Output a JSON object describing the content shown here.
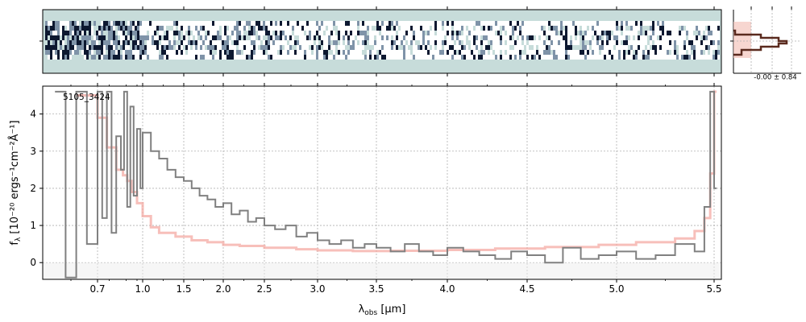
{
  "chart_data": {
    "type": "line",
    "object_label": "5105_3424",
    "xlabel_prefix": "λ",
    "xlabel_sub": "obs",
    "xlabel_suffix": " [μm]",
    "ylabel_main": "f",
    "ylabel_sub": "λ",
    "ylabel_units": " [10⁻²⁰ ergs⁻¹cm⁻²Å⁻¹]",
    "xlim": [
      0.6,
      5.52
    ],
    "ylim": [
      -0.45,
      4.75
    ],
    "x_scale": "nonlinear-sqrt-like",
    "grid": true,
    "x_ticks": [
      {
        "label": "0.7",
        "value": 0.7
      },
      {
        "label": "1.0",
        "value": 1.0
      },
      {
        "label": "1.5",
        "value": 1.5
      },
      {
        "label": "2.0",
        "value": 2.0
      },
      {
        "label": "2.5",
        "value": 2.5
      },
      {
        "label": "3.0",
        "value": 3.0
      },
      {
        "label": "3.5",
        "value": 3.5
      },
      {
        "label": "4.0",
        "value": 4.0
      },
      {
        "label": "4.5",
        "value": 4.5
      },
      {
        "label": "5.0",
        "value": 5.0
      },
      {
        "label": "5.5",
        "value": 5.5
      }
    ],
    "y_ticks": [
      {
        "label": "0",
        "value": 0
      },
      {
        "label": "1",
        "value": 1
      },
      {
        "label": "2",
        "value": 2
      },
      {
        "label": "3",
        "value": 3
      },
      {
        "label": "4",
        "value": 4
      }
    ],
    "series": [
      {
        "role": "flux",
        "color": "#808080",
        "x": [
          0.62,
          0.64,
          0.66,
          0.68,
          0.7,
          0.72,
          0.74,
          0.76,
          0.78,
          0.8,
          0.83,
          0.86,
          0.89,
          0.92,
          0.95,
          0.98,
          1.0,
          1.1,
          1.2,
          1.3,
          1.4,
          1.5,
          1.6,
          1.7,
          1.8,
          1.9,
          2.0,
          2.1,
          2.2,
          2.3,
          2.4,
          2.5,
          2.6,
          2.7,
          2.8,
          2.9,
          3.0,
          3.1,
          3.2,
          3.3,
          3.4,
          3.5,
          3.6,
          3.7,
          3.8,
          3.9,
          4.0,
          4.1,
          4.2,
          4.3,
          4.4,
          4.5,
          4.6,
          4.7,
          4.8,
          4.9,
          5.0,
          5.1,
          5.2,
          5.3,
          5.4,
          5.45,
          5.48,
          5.5
        ],
        "y": [
          4.6,
          -0.4,
          4.6,
          0.5,
          4.6,
          1.2,
          4.6,
          0.8,
          3.4,
          2.5,
          4.6,
          1.5,
          4.2,
          1.8,
          3.6,
          2.0,
          3.5,
          3.0,
          2.8,
          2.5,
          2.3,
          2.2,
          2.0,
          1.8,
          1.7,
          1.5,
          1.6,
          1.3,
          1.4,
          1.1,
          1.2,
          1.0,
          0.9,
          1.0,
          0.7,
          0.8,
          0.6,
          0.5,
          0.6,
          0.4,
          0.5,
          0.4,
          0.3,
          0.5,
          0.3,
          0.2,
          0.4,
          0.3,
          0.2,
          0.1,
          0.3,
          0.2,
          0.0,
          0.4,
          0.1,
          0.2,
          0.3,
          0.1,
          0.2,
          0.5,
          0.3,
          1.5,
          4.6,
          2.0
        ]
      },
      {
        "role": "model",
        "color": "#f4a49c",
        "x": [
          0.66,
          0.7,
          0.74,
          0.78,
          0.82,
          0.86,
          0.9,
          0.95,
          1.0,
          1.1,
          1.2,
          1.4,
          1.6,
          1.8,
          2.0,
          2.2,
          2.5,
          2.8,
          3.0,
          3.3,
          3.6,
          4.0,
          4.3,
          4.6,
          4.9,
          5.1,
          5.3,
          5.4,
          5.45,
          5.48,
          5.5
        ],
        "y": [
          4.5,
          3.9,
          3.1,
          2.5,
          2.35,
          2.2,
          1.9,
          1.6,
          1.25,
          0.95,
          0.8,
          0.7,
          0.6,
          0.55,
          0.48,
          0.45,
          0.4,
          0.36,
          0.33,
          0.31,
          0.32,
          0.34,
          0.38,
          0.42,
          0.48,
          0.55,
          0.65,
          0.85,
          1.2,
          2.4,
          4.6
        ]
      }
    ],
    "residual_panel": {
      "label": "-0.00 ± 0.84",
      "histogram_color": "#5a2a1e",
      "fill_color": "#f4c4bc"
    }
  }
}
